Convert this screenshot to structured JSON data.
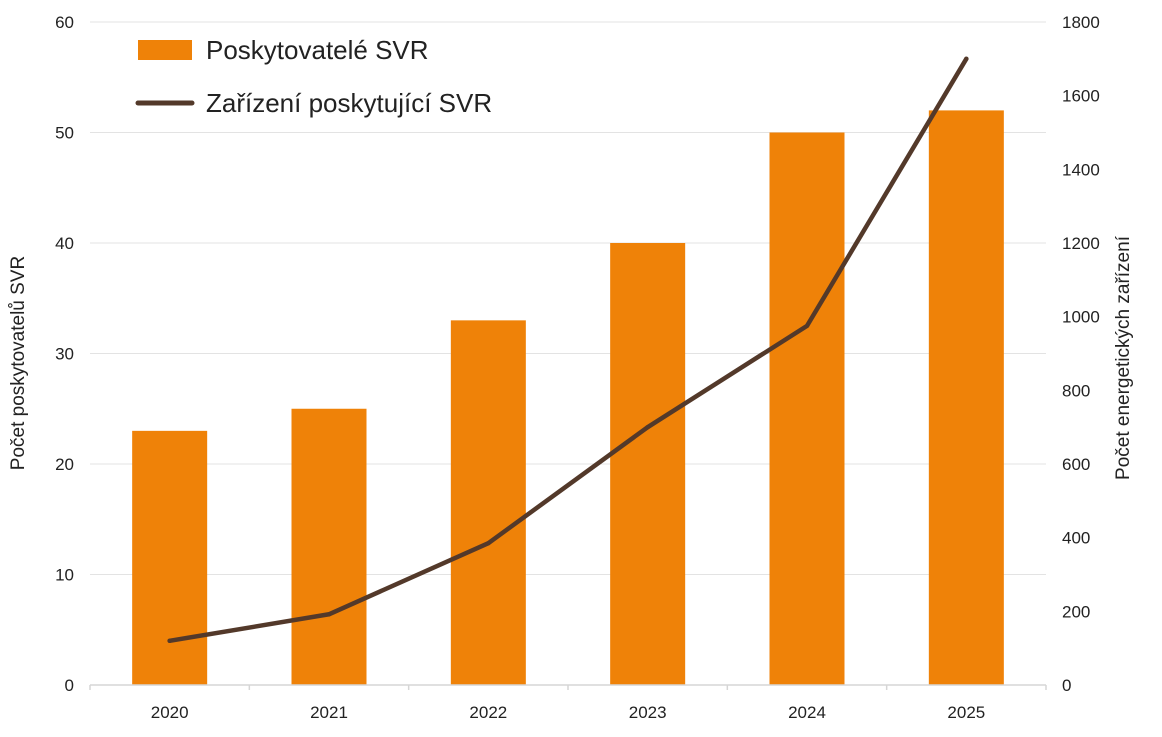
{
  "chart_data": {
    "type": "bar",
    "categories": [
      "2020",
      "2021",
      "2022",
      "2023",
      "2024",
      "2025"
    ],
    "series": [
      {
        "name": "Poskytovatelé SVR",
        "type": "bar",
        "axis": "left",
        "color": "#ef8208",
        "values": [
          23,
          25,
          33,
          40,
          50,
          52
        ]
      },
      {
        "name": "Zařízení poskytující SVR",
        "type": "line",
        "axis": "right",
        "color": "#53392a",
        "values": [
          120,
          192,
          385,
          700,
          975,
          1700
        ]
      }
    ],
    "ylabel": "Počet poskytovatelů SVR",
    "ylabel_right": "Počet energetických zařízení",
    "ylim": [
      0,
      60
    ],
    "ylim_right": [
      0,
      1800
    ],
    "yticks": [
      "0",
      "10",
      "20",
      "30",
      "40",
      "50",
      "60"
    ],
    "yticks_right": [
      "0",
      "200",
      "400",
      "600",
      "800",
      "1000",
      "1200",
      "1400",
      "1600",
      "1800"
    ],
    "grid": true,
    "legend_position": "top-left"
  }
}
